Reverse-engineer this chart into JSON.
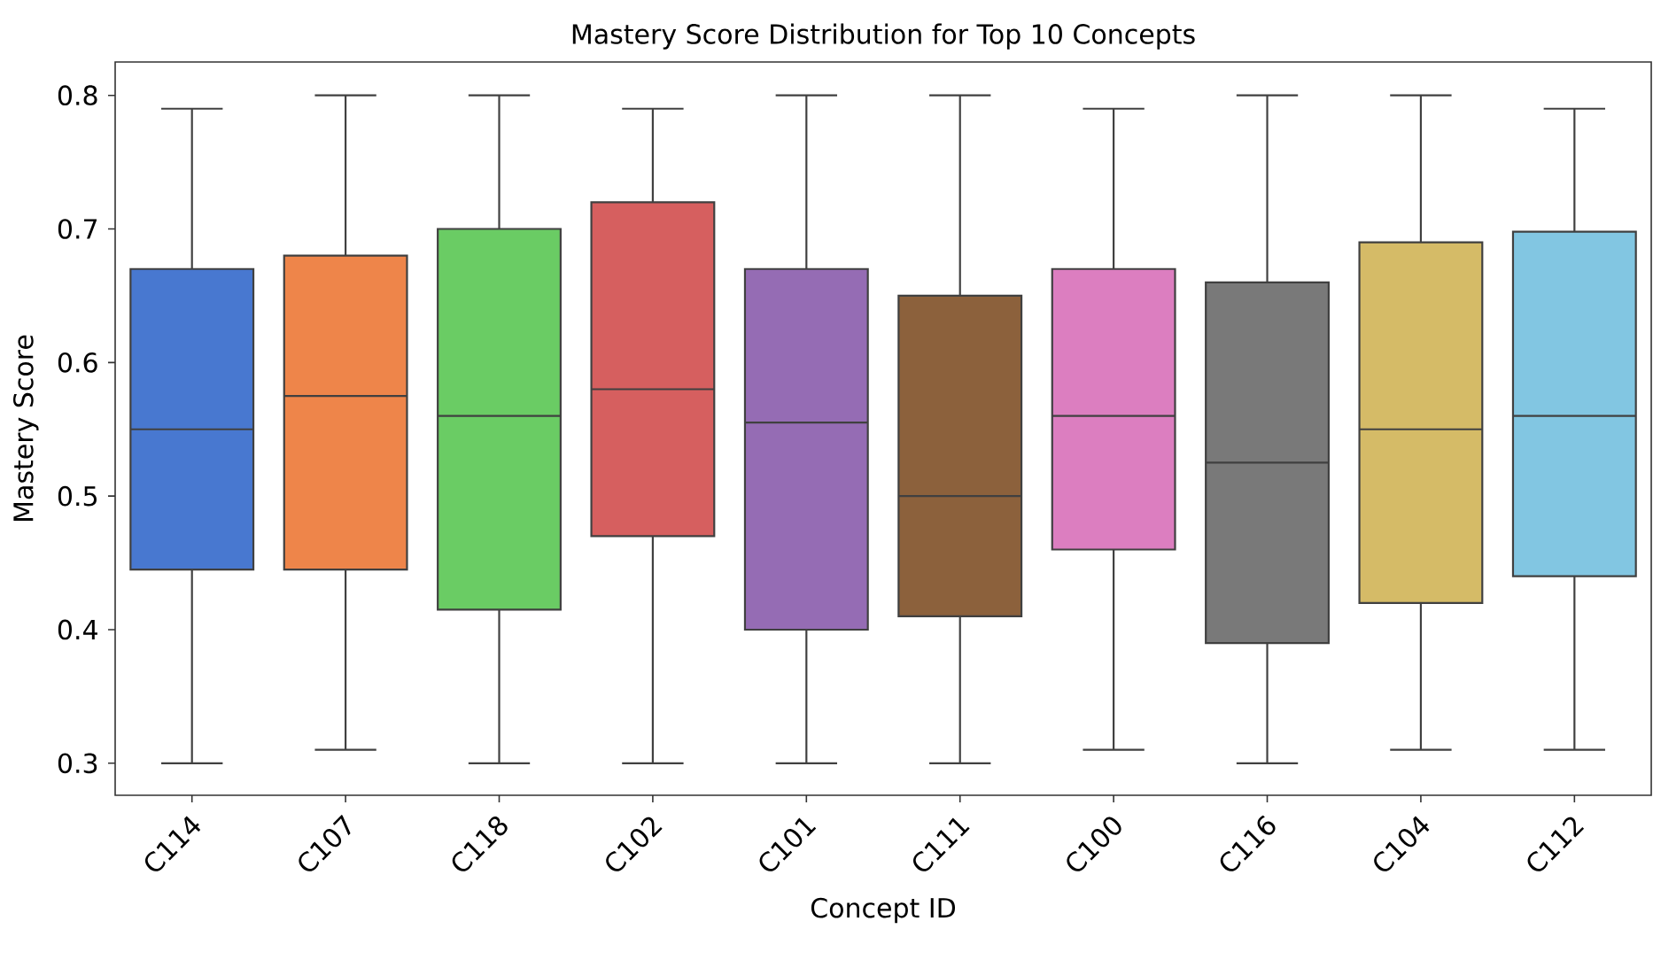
{
  "chart_data": {
    "type": "box",
    "title": "Mastery Score Distribution for Top 10 Concepts",
    "xlabel": "Concept ID",
    "ylabel": "Mastery Score",
    "categories": [
      "C114",
      "C107",
      "C118",
      "C102",
      "C101",
      "C111",
      "C100",
      "C116",
      "C104",
      "C112"
    ],
    "colors": [
      "#4878d0",
      "#ee854a",
      "#6acc64",
      "#d65f5f",
      "#956cb4",
      "#8c613c",
      "#dc7ec0",
      "#797979",
      "#d5bb67",
      "#82c6e2"
    ],
    "boxes": [
      {
        "low": 0.3,
        "q1": 0.445,
        "median": 0.55,
        "q3": 0.67,
        "high": 0.79
      },
      {
        "low": 0.31,
        "q1": 0.445,
        "median": 0.575,
        "q3": 0.68,
        "high": 0.8
      },
      {
        "low": 0.3,
        "q1": 0.415,
        "median": 0.56,
        "q3": 0.7,
        "high": 0.8
      },
      {
        "low": 0.3,
        "q1": 0.47,
        "median": 0.58,
        "q3": 0.72,
        "high": 0.79
      },
      {
        "low": 0.3,
        "q1": 0.4,
        "median": 0.555,
        "q3": 0.67,
        "high": 0.8
      },
      {
        "low": 0.3,
        "q1": 0.41,
        "median": 0.5,
        "q3": 0.65,
        "high": 0.8
      },
      {
        "low": 0.31,
        "q1": 0.46,
        "median": 0.56,
        "q3": 0.67,
        "high": 0.79
      },
      {
        "low": 0.3,
        "q1": 0.39,
        "median": 0.525,
        "q3": 0.66,
        "high": 0.8
      },
      {
        "low": 0.31,
        "q1": 0.42,
        "median": 0.55,
        "q3": 0.69,
        "high": 0.8
      },
      {
        "low": 0.31,
        "q1": 0.44,
        "median": 0.56,
        "q3": 0.698,
        "high": 0.79
      }
    ],
    "ylim": [
      0.276,
      0.825
    ],
    "yticks": [
      0.3,
      0.4,
      0.5,
      0.6,
      0.7,
      0.8
    ]
  }
}
